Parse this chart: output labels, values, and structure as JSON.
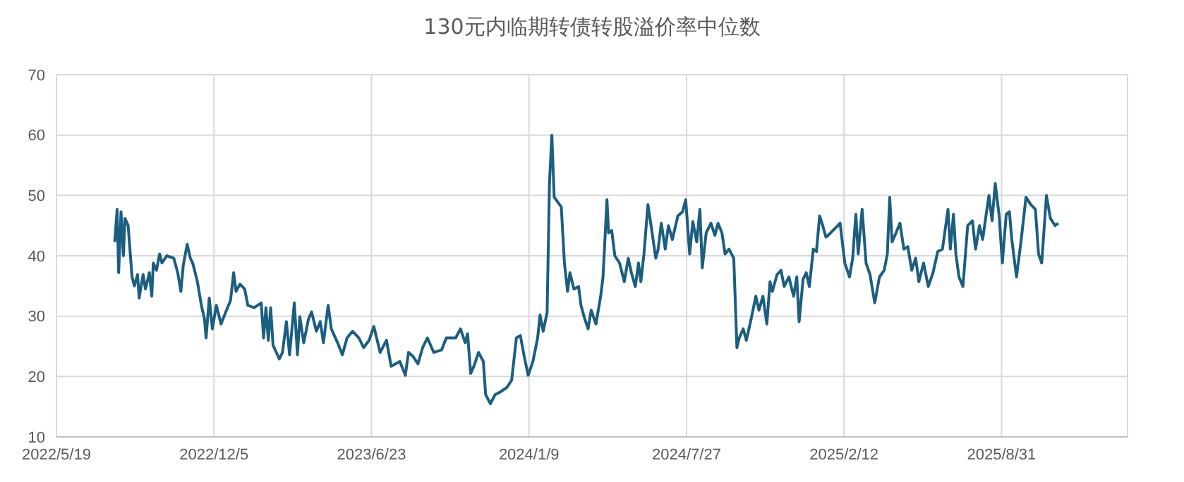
{
  "chart_data": {
    "type": "line",
    "title": "130元内临期转债转股溢价率中位数",
    "xlim": [
      "2022-05-19",
      "2026-02-07"
    ],
    "xticks": [
      {
        "value": "2022-05-19",
        "label": "2022/5/19"
      },
      {
        "value": "2022-12-05",
        "label": "2022/12/5"
      },
      {
        "value": "2023-06-23",
        "label": "2023/6/23"
      },
      {
        "value": "2024-01-09",
        "label": "2024/1/9"
      },
      {
        "value": "2024-07-27",
        "label": "2024/7/27"
      },
      {
        "value": "2025-02-12",
        "label": "2025/2/12"
      },
      {
        "value": "2025-08-31",
        "label": "2025/8/31"
      }
    ],
    "ylim": [
      10,
      70
    ],
    "yticks": [
      10,
      20,
      30,
      40,
      50,
      60,
      70
    ],
    "grid": true,
    "marker": "none",
    "line_style": "solid",
    "x": [
      "2022-08-01",
      "2022-08-04",
      "2022-08-06",
      "2022-08-09",
      "2022-08-12",
      "2022-08-14",
      "2022-08-18",
      "2022-08-23",
      "2022-08-26",
      "2022-08-30",
      "2022-09-01",
      "2022-09-06",
      "2022-09-09",
      "2022-09-14",
      "2022-09-17",
      "2022-09-19",
      "2022-09-23",
      "2022-09-27",
      "2022-09-30",
      "2022-10-06",
      "2022-10-15",
      "2022-10-20",
      "2022-10-24",
      "2022-10-27",
      "2022-11-01",
      "2022-11-05",
      "2022-11-08",
      "2022-11-14",
      "2022-11-19",
      "2022-11-23",
      "2022-11-25",
      "2022-11-29",
      "2022-12-03",
      "2022-12-08",
      "2022-12-14",
      "2022-12-20",
      "2022-12-26",
      "2022-12-30",
      "2023-01-02",
      "2023-01-07",
      "2023-01-13",
      "2023-01-17",
      "2023-01-25",
      "2023-02-03",
      "2023-02-06",
      "2023-02-09",
      "2023-02-12",
      "2023-02-15",
      "2023-02-18",
      "2023-02-26",
      "2023-03-02",
      "2023-03-07",
      "2023-03-11",
      "2023-03-17",
      "2023-03-21",
      "2023-03-24",
      "2023-03-29",
      "2023-04-04",
      "2023-04-08",
      "2023-04-14",
      "2023-04-19",
      "2023-04-23",
      "2023-04-29",
      "2023-05-03",
      "2023-05-11",
      "2023-05-17",
      "2023-05-23",
      "2023-05-30",
      "2023-06-07",
      "2023-06-13",
      "2023-06-20",
      "2023-06-26",
      "2023-07-04",
      "2023-07-12",
      "2023-07-18",
      "2023-07-29",
      "2023-08-05",
      "2023-08-09",
      "2023-08-15",
      "2023-08-21",
      "2023-08-27",
      "2023-09-02",
      "2023-09-10",
      "2023-09-20",
      "2023-09-26",
      "2023-10-08",
      "2023-10-14",
      "2023-10-20",
      "2023-10-23",
      "2023-10-27",
      "2023-10-31",
      "2023-11-06",
      "2023-11-12",
      "2023-11-15",
      "2023-11-21",
      "2023-11-27",
      "2023-12-03",
      "2023-12-12",
      "2023-12-18",
      "2023-12-24",
      "2023-12-29",
      "2024-01-03",
      "2024-01-08",
      "2024-01-14",
      "2024-01-20",
      "2024-01-23",
      "2024-01-27",
      "2024-02-01",
      "2024-02-04",
      "2024-02-07",
      "2024-02-10",
      "2024-02-19",
      "2024-02-23",
      "2024-02-27",
      "2024-03-01",
      "2024-03-06",
      "2024-03-12",
      "2024-03-15",
      "2024-03-19",
      "2024-03-24",
      "2024-03-28",
      "2024-04-03",
      "2024-04-09",
      "2024-04-12",
      "2024-04-17",
      "2024-04-19",
      "2024-04-23",
      "2024-04-27",
      "2024-05-03",
      "2024-05-09",
      "2024-05-14",
      "2024-05-18",
      "2024-05-23",
      "2024-05-27",
      "2024-05-30",
      "2024-06-03",
      "2024-06-08",
      "2024-06-12",
      "2024-06-18",
      "2024-06-21",
      "2024-06-25",
      "2024-06-30",
      "2024-07-04",
      "2024-07-09",
      "2024-07-16",
      "2024-07-22",
      "2024-07-26",
      "2024-07-31",
      "2024-08-04",
      "2024-08-09",
      "2024-08-13",
      "2024-08-16",
      "2024-08-21",
      "2024-08-27",
      "2024-09-01",
      "2024-09-05",
      "2024-09-10",
      "2024-09-14",
      "2024-09-19",
      "2024-09-25",
      "2024-09-29",
      "2024-10-02",
      "2024-10-07",
      "2024-10-11",
      "2024-10-17",
      "2024-10-23",
      "2024-10-27",
      "2024-11-01",
      "2024-11-06",
      "2024-11-10",
      "2024-11-13",
      "2024-11-19",
      "2024-11-24",
      "2024-11-28",
      "2024-12-04",
      "2024-12-10",
      "2024-12-14",
      "2024-12-17",
      "2024-12-22",
      "2024-12-26",
      "2024-12-30",
      "2025-01-04",
      "2025-01-08",
      "2025-01-12",
      "2025-01-16",
      "2025-01-20",
      "2025-01-26",
      "2025-02-01",
      "2025-02-07",
      "2025-02-13",
      "2025-02-19",
      "2025-02-23",
      "2025-02-27",
      "2025-03-02",
      "2025-03-07",
      "2025-03-12",
      "2025-03-17",
      "2025-03-23",
      "2025-03-29",
      "2025-04-04",
      "2025-04-08",
      "2025-04-11",
      "2025-04-14",
      "2025-04-19",
      "2025-04-24",
      "2025-04-29",
      "2025-05-04",
      "2025-05-09",
      "2025-05-14",
      "2025-05-18",
      "2025-05-24",
      "2025-05-30",
      "2025-06-05",
      "2025-06-11",
      "2025-06-17",
      "2025-06-24",
      "2025-06-27",
      "2025-07-01",
      "2025-07-04",
      "2025-07-08",
      "2025-07-13",
      "2025-07-19",
      "2025-07-25",
      "2025-07-29",
      "2025-08-03",
      "2025-08-07",
      "2025-08-12",
      "2025-08-15",
      "2025-08-19",
      "2025-08-23",
      "2025-08-28",
      "2025-09-01",
      "2025-09-06",
      "2025-09-10",
      "2025-09-13",
      "2025-09-19",
      "2025-09-25",
      "2025-10-01",
      "2025-10-07",
      "2025-10-13",
      "2025-10-17",
      "2025-10-21",
      "2025-10-27",
      "2025-11-01",
      "2025-11-07",
      "2025-11-11"
    ],
    "series": [
      {
        "color": "#1b5e80",
        "values": [
          42.3,
          47.7,
          37.2,
          47.3,
          40,
          46.2,
          45,
          36.5,
          35,
          36.9,
          33,
          36.9,
          34.5,
          37.2,
          33.3,
          38.8,
          37.6,
          40.3,
          38.8,
          40,
          39.6,
          37.2,
          34.1,
          38.4,
          41.9,
          39.6,
          38.8,
          35.7,
          31.8,
          29.5,
          26.4,
          33,
          27.9,
          31.8,
          28.7,
          30.7,
          32.6,
          37.2,
          34.1,
          35.3,
          34.5,
          31.8,
          31.4,
          32.2,
          26.4,
          31.4,
          26,
          31.4,
          25.2,
          22.9,
          24,
          29.1,
          23.6,
          32.2,
          23.6,
          29.9,
          25.6,
          29.5,
          30.7,
          27.5,
          29.1,
          25.6,
          31.8,
          27.9,
          25.6,
          23.6,
          26.4,
          27.5,
          26.4,
          24.8,
          26,
          28.3,
          24,
          26,
          21.7,
          22.5,
          20.2,
          24,
          23.3,
          22.1,
          24.8,
          26.4,
          24,
          24.4,
          26.4,
          26.4,
          27.9,
          25.6,
          27.1,
          20.5,
          21.7,
          24,
          22.5,
          17,
          15.5,
          17,
          17.4,
          18.2,
          19.4,
          26.4,
          26.8,
          23.3,
          20.2,
          22.5,
          26.4,
          30.2,
          27.5,
          30.6,
          52,
          60,
          49.7,
          48.1,
          38.8,
          34.1,
          37.2,
          34.5,
          34.9,
          31.8,
          29.9,
          27.9,
          31,
          28.7,
          33.3,
          36.5,
          49.3,
          43.8,
          44.2,
          40,
          38.8,
          35.7,
          39.6,
          37.2,
          34.9,
          38.8,
          35.7,
          40.3,
          48.5,
          45,
          39.6,
          41.1,
          45.4,
          41.1,
          45,
          42.7,
          46.6,
          47.3,
          49.3,
          40.3,
          45.7,
          42.3,
          47.7,
          38,
          43.8,
          45.4,
          43.4,
          45.4,
          43.8,
          40.3,
          41.1,
          39.6,
          24.8,
          26.4,
          27.9,
          26,
          29.5,
          33.3,
          31,
          33.3,
          28.7,
          35.7,
          34.1,
          36.9,
          37.6,
          34.9,
          36.5,
          33.3,
          36.5,
          29.1,
          36.1,
          37.2,
          34.9,
          41.1,
          40.7,
          46.6,
          45,
          43.1,
          43.8,
          44.6,
          45.4,
          38.8,
          36.5,
          39.6,
          46.9,
          40.3,
          47.7,
          38.8,
          36.9,
          32.2,
          36.5,
          37.6,
          40.3,
          49.7,
          42.3,
          43.8,
          45.4,
          41.1,
          41.5,
          37.6,
          39.6,
          35.7,
          38.8,
          34.9,
          37.2,
          40.7,
          41.1,
          47.7,
          41.1,
          46.9,
          40.3,
          36.5,
          34.9,
          45,
          45.8,
          41.1,
          45,
          42.7,
          47.3,
          50,
          45.8,
          52,
          46.6,
          38.8,
          46.9,
          47.3,
          42.7,
          36.5,
          42.7,
          49.7,
          48.5,
          47.7,
          40.3,
          38.8,
          50,
          46.2,
          45,
          45.4
        ]
      }
    ]
  }
}
